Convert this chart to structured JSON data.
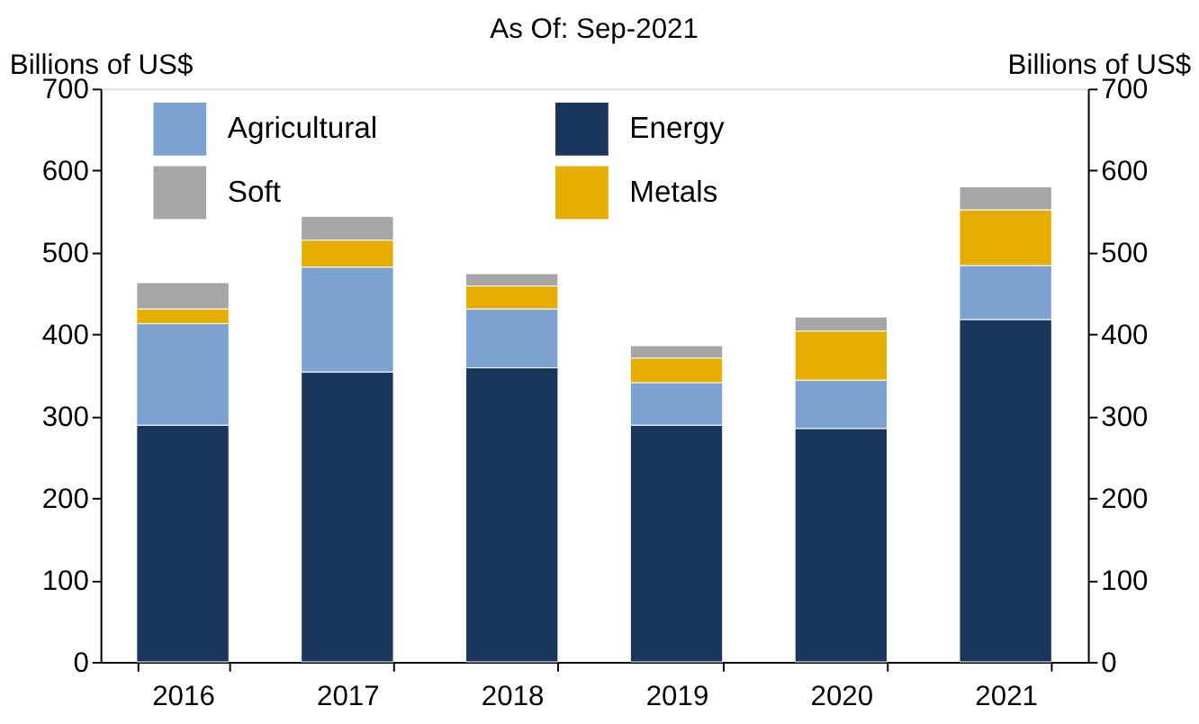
{
  "chart_data": {
    "type": "bar",
    "title": "As Of: Sep-2021",
    "ylabel": "Billions of US$",
    "y2label": "Billions of US$",
    "categories": [
      "2016",
      "2017",
      "2018",
      "2019",
      "2020",
      "2021"
    ],
    "stacked": true,
    "series": [
      {
        "name": "Energy",
        "color": "#1a365d",
        "values": [
          289,
          354,
          359,
          289,
          285,
          418
        ]
      },
      {
        "name": "Agricultural",
        "color": "#7ba2d0",
        "values": [
          124,
          128,
          72,
          52,
          59,
          66
        ]
      },
      {
        "name": "Metals",
        "color": "#e6ae00",
        "values": [
          18,
          33,
          28,
          30,
          60,
          68
        ]
      },
      {
        "name": "Soft",
        "color": "#a6a6a6",
        "values": [
          32,
          29,
          15,
          15,
          17,
          28
        ]
      }
    ],
    "ylim": [
      0,
      700
    ],
    "yticks": [
      0,
      100,
      200,
      300,
      400,
      500,
      600,
      700
    ],
    "y2lim": [
      0,
      700
    ],
    "y2ticks": [
      0,
      100,
      200,
      300,
      400,
      500,
      600,
      700
    ],
    "grid": false,
    "legend": "top"
  }
}
